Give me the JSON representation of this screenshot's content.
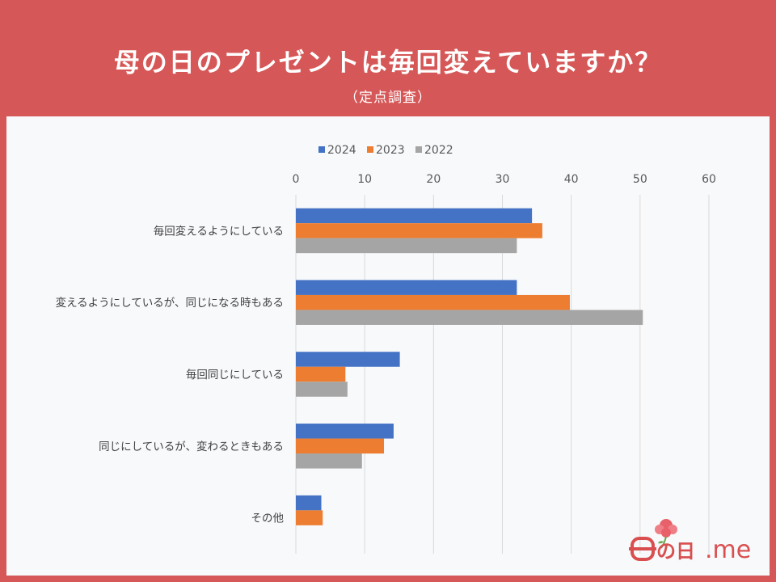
{
  "title": "母の日のプレゼントは毎回変えていますか？",
  "subtitle": "（定点調査）",
  "logo_text": {
    "char": "の日",
    "suffix": ".me"
  },
  "colors": {
    "background": "#d65757",
    "panel": "#f8f9fb",
    "series_2024": "#4472c4",
    "series_2023": "#ed7d31",
    "series_2022": "#a5a5a5",
    "logo": "#d94f4f"
  },
  "chart_data": {
    "type": "bar",
    "orientation": "horizontal",
    "categories": [
      "毎回変えるようにしている",
      "変えるようにしているが、同じになる時もある",
      "毎回同じにしている",
      "同じにしているが、変わるときもある",
      "その他"
    ],
    "series": [
      {
        "name": "2024",
        "color": "#4472c4",
        "values": [
          34.3,
          32.1,
          15.1,
          14.2,
          3.7
        ]
      },
      {
        "name": "2023",
        "color": "#ed7d31",
        "values": [
          35.8,
          39.8,
          7.2,
          12.8,
          3.9
        ]
      },
      {
        "name": "2022",
        "color": "#a5a5a5",
        "values": [
          32.1,
          50.4,
          7.5,
          9.6,
          null
        ]
      }
    ],
    "xlim": [
      0,
      60
    ],
    "xticks": [
      0,
      10,
      20,
      30,
      40,
      50,
      60
    ],
    "xaxis_position": "top",
    "grid": true,
    "legend_position": "top"
  }
}
